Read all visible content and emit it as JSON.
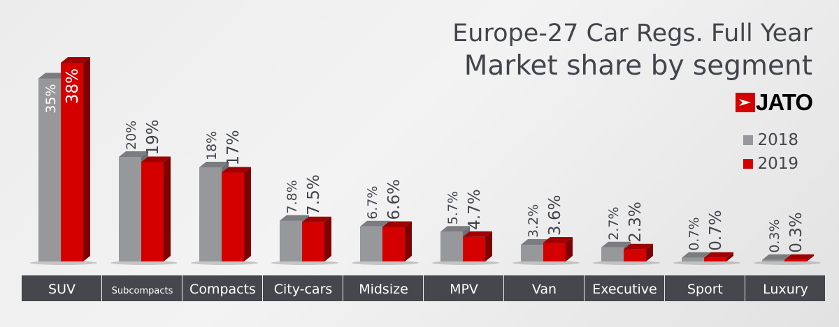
{
  "chart_data": {
    "type": "bar",
    "title": "Europe-27 Car Regs. Full Year",
    "subtitle": "Market share by segment",
    "categories": [
      "SUV",
      "Subcompacts",
      "Compacts",
      "City-cars",
      "Midsize",
      "MPV",
      "Van",
      "Executive",
      "Sport",
      "Luxury"
    ],
    "series": [
      {
        "name": "2018",
        "color": "#97989c",
        "values": [
          35,
          20,
          18,
          7.8,
          6.7,
          5.7,
          3.2,
          2.7,
          0.7,
          0.3
        ],
        "labels": [
          "35%",
          "20%",
          "18%",
          "7.8%",
          "6.7%",
          "5.7%",
          "3.2%",
          "2.7%",
          "0.7%",
          "0.3%"
        ]
      },
      {
        "name": "2019",
        "color": "#d40000",
        "values": [
          38,
          19,
          17,
          7.5,
          6.6,
          4.7,
          3.6,
          2.3,
          0.7,
          0.3
        ],
        "labels": [
          "38%",
          "19%",
          "17%",
          "7.5%",
          "6.6%",
          "4.7%",
          "3.6%",
          "2.3%",
          "0.7%",
          "0.3%"
        ]
      }
    ],
    "ylim": [
      0,
      38
    ],
    "grid": false,
    "legend": "right",
    "xlabel": "",
    "ylabel": ""
  },
  "logo": {
    "text": "JATO",
    "color": "#d40000"
  },
  "category_bar_color": "#46474d"
}
